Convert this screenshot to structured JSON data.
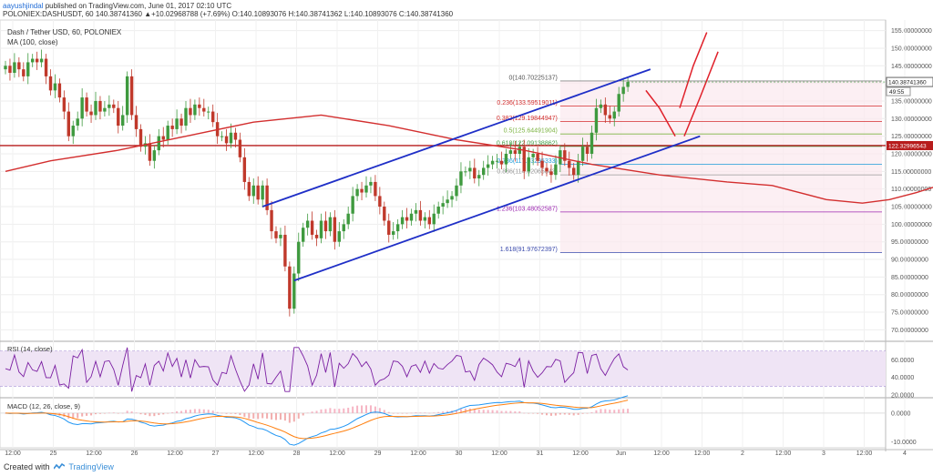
{
  "header": {
    "author": "aayushjindal",
    "published": "published on TradingView.com, June 01, 2017 02:10 UTC",
    "ticker": "POLONIEX:DASHUSDT, 60",
    "quote": "140.38741360  ▲+10.02968788 (+7.69%) O:140.10893076 H:140.38741362 L:140.10893076 C:140.38741360"
  },
  "legend": {
    "title": "Dash / Tether USD, 60, POLONIEX",
    "ma": "MA (100, close)"
  },
  "footer": {
    "created_with": "Created with",
    "brand": "TradingView"
  },
  "colors": {
    "up": "#3f9a3f",
    "down": "#c0392b",
    "ma": "#d32f2f",
    "channel": "#1f2fc7",
    "arrows": "#e0202a",
    "rsi": "#7b1fa2",
    "macd": "#2196f3",
    "signal": "#ff7f0e",
    "fib_zone": "#fbe8ee"
  },
  "chart_data": [
    {
      "type": "candlestick",
      "title": "Dash / Tether USD, 60, POLONIEX",
      "y_ticks": [
        "155.00000000",
        "150.00000000",
        "145.00000000",
        "140.00000000",
        "135.00000000",
        "130.00000000",
        "125.00000000",
        "120.00000000",
        "115.00000000",
        "110.00000000",
        "105.00000000",
        "100.00000000",
        "95.00000000",
        "90.00000000",
        "85.00000000",
        "80.00000000",
        "75.00000000",
        "70.00000000"
      ],
      "ylim": [
        67,
        158
      ],
      "x_ticks": [
        "12:00",
        "25",
        "12:00",
        "26",
        "12:00",
        "27",
        "12:00",
        "28",
        "12:00",
        "29",
        "12:00",
        "30",
        "12:00",
        "31",
        "12:00",
        "Jun",
        "12:00",
        "12:00",
        "2",
        "12:00",
        "3",
        "12:00",
        "4"
      ],
      "last_price_label": "140.38741360",
      "countdown_label": "49:55",
      "level_label": "122.32996543",
      "resistance_level": 122.33,
      "fib_levels": [
        {
          "label": "0(140.70225137)",
          "value": 140.7
        },
        {
          "label": "0.236(133.59519011)",
          "value": 133.6
        },
        {
          "label": "0.382(129.19844947)",
          "value": 129.2
        },
        {
          "label": "0.5(125.64491904)",
          "value": 125.64
        },
        {
          "label": "0.618(122.09138862)",
          "value": 122.09
        },
        {
          "label": "0.786(117.03295333)",
          "value": 117.03
        },
        {
          "label": "0.886(114.02065843)",
          "value": 114.02
        },
        {
          "label": "1.236(103.48052587)",
          "value": 103.48
        },
        {
          "label": "1.618(91.97672397)",
          "value": 91.98
        }
      ],
      "closes": [
        145,
        143,
        146,
        144,
        142,
        146,
        147,
        146,
        147,
        142,
        138,
        140,
        136,
        132,
        125,
        128,
        130,
        136,
        132,
        131,
        135,
        132,
        133,
        134,
        133,
        128,
        131,
        142,
        131,
        127,
        122,
        123,
        118,
        121,
        125,
        124,
        128,
        127,
        130,
        128,
        133,
        131,
        134,
        133,
        132,
        132,
        129,
        125,
        125,
        123,
        126,
        124,
        119,
        112,
        108,
        111,
        107,
        111,
        104,
        98,
        96,
        97,
        88,
        76,
        86,
        95,
        99,
        101,
        97,
        96,
        101,
        98,
        102,
        95,
        98,
        100,
        103,
        108,
        110,
        109,
        111,
        112,
        108,
        105,
        101,
        97,
        98,
        100,
        102,
        101,
        103,
        104,
        101,
        102,
        100,
        103,
        105,
        106,
        107,
        108,
        111,
        115,
        115,
        116,
        113,
        114,
        116,
        117,
        118,
        118,
        117,
        120,
        121,
        120,
        122,
        115,
        119,
        120,
        118,
        116,
        115,
        114,
        117,
        121,
        118,
        116,
        114,
        118,
        122,
        120,
        126,
        133,
        134,
        131,
        130,
        132,
        137,
        139,
        140.4
      ],
      "ma": [
        {
          "x": 0,
          "y": 115
        },
        {
          "x": 10,
          "y": 118
        },
        {
          "x": 25,
          "y": 121
        },
        {
          "x": 40,
          "y": 125
        },
        {
          "x": 55,
          "y": 129
        },
        {
          "x": 70,
          "y": 131
        },
        {
          "x": 85,
          "y": 128
        },
        {
          "x": 100,
          "y": 124
        },
        {
          "x": 115,
          "y": 121
        },
        {
          "x": 130,
          "y": 117
        },
        {
          "x": 145,
          "y": 114
        },
        {
          "x": 160,
          "y": 112
        },
        {
          "x": 170,
          "y": 111
        },
        {
          "x": 182,
          "y": 107
        },
        {
          "x": 190,
          "y": 106
        },
        {
          "x": 196,
          "y": 107
        },
        {
          "x": 202,
          "y": 109
        },
        {
          "x": 212,
          "y": 113
        }
      ]
    },
    {
      "type": "line",
      "title": "RSI (14, close)",
      "y_ticks": [
        "60.0000",
        "40.0000",
        "20.0000"
      ],
      "ylim": [
        18,
        80
      ]
    },
    {
      "type": "line",
      "title": "MACD (12, 26, close, 9)",
      "y_ticks": [
        "0.0000",
        "-10.0000"
      ],
      "ylim": [
        -12,
        5
      ]
    }
  ]
}
